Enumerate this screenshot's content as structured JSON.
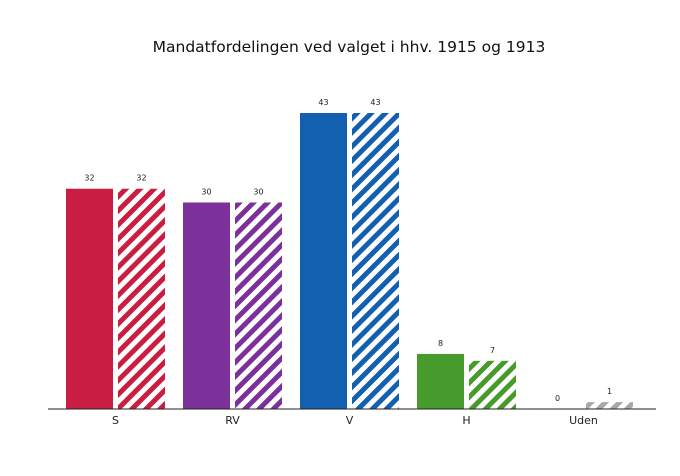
{
  "chart_data": {
    "type": "bar",
    "title": "Mandatfordelingen ved valget i hhv. 1915 og 1913",
    "xlabel": "",
    "ylabel": "",
    "ylim": [
      0,
      43
    ],
    "grid": false,
    "legend": "none",
    "categories": [
      "S",
      "RV",
      "V",
      "H",
      "Uden"
    ],
    "series": [
      {
        "values": [
          32,
          30,
          43,
          8,
          0
        ],
        "fill": "solid"
      },
      {
        "values": [
          32,
          30,
          43,
          7,
          1
        ],
        "fill": "hatched"
      }
    ],
    "colors": [
      "#c91d42",
      "#7b3199",
      "#135fb0",
      "#479a2c",
      "#a8a8a8"
    ]
  }
}
